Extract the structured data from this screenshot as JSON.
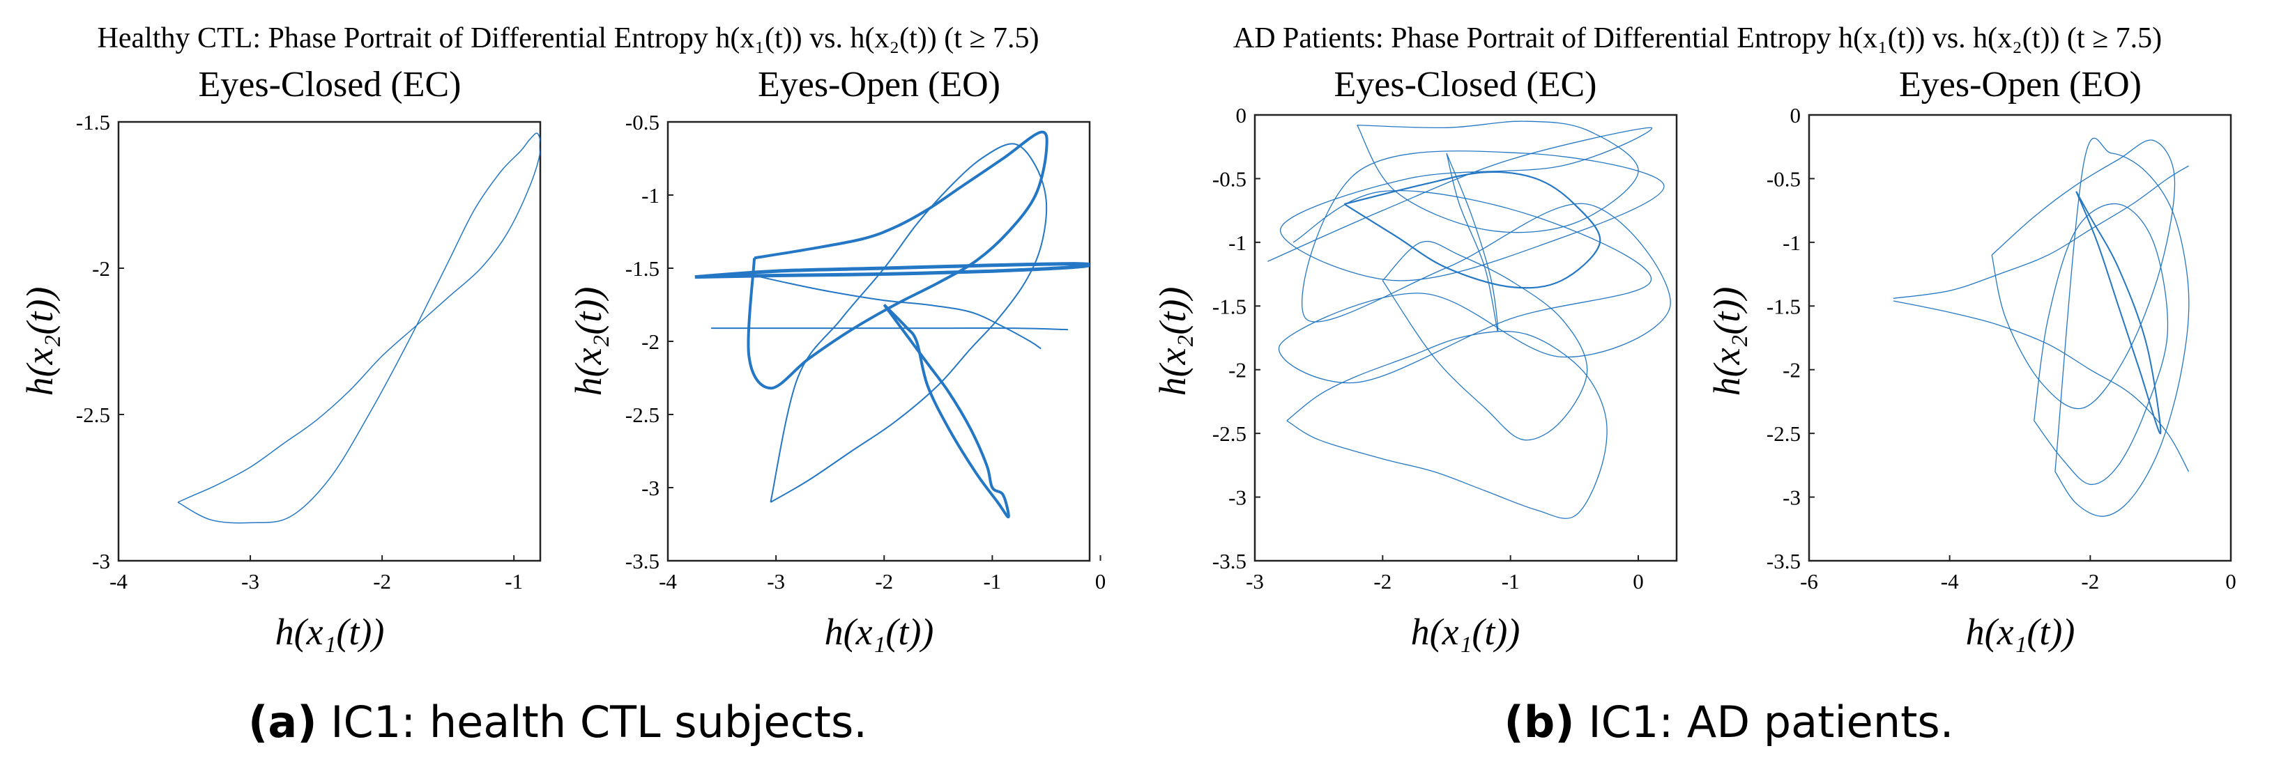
{
  "colors": {
    "line": "#2477c4",
    "axis": "#222222",
    "background": "#ffffff"
  },
  "groups": [
    {
      "panel_title": "Healthy CTL: Phase Portrait of Differential Entropy h(x₁(t)) vs. h(x₂(t)) (t ≥ 7.5)",
      "caption_bold": "(a)",
      "caption_text": " IC1: health CTL subjects."
    },
    {
      "panel_title": "AD Patients: Phase Portrait of Differential Entropy h(x₁(t)) vs. h(x₂(t)) (t ≥ 7.5)",
      "caption_bold": "(b)",
      "caption_text": " IC1: AD patients."
    }
  ],
  "chart_data": [
    {
      "type": "line",
      "group": "Healthy CTL",
      "title": "Eyes-Closed (EC)",
      "xlabel": "h(x₁(t))",
      "ylabel": "h(x₂(t))",
      "xlim": [
        -4,
        -0.8
      ],
      "ylim": [
        -3,
        -1.5
      ],
      "xticks": [
        -4,
        -3,
        -2,
        -1
      ],
      "yticks": [
        -3,
        -2.5,
        -2,
        -1.5
      ],
      "series": [
        {
          "line_width": 1.5,
          "x": [
            -3.55,
            -3.3,
            -3.0,
            -2.7,
            -2.4,
            -2.1,
            -1.8,
            -1.5,
            -1.3,
            -1.1,
            -0.95,
            -0.88,
            -0.82,
            -0.8,
            -0.88,
            -1.05,
            -1.25,
            -1.5,
            -1.75,
            -2.0,
            -2.25,
            -2.5,
            -2.75,
            -3.0,
            -3.25,
            -3.45,
            -3.55
          ],
          "y": [
            -2.8,
            -2.86,
            -2.87,
            -2.85,
            -2.72,
            -2.5,
            -2.25,
            -1.98,
            -1.8,
            -1.67,
            -1.6,
            -1.56,
            -1.54,
            -1.6,
            -1.72,
            -1.88,
            -2.0,
            -2.1,
            -2.2,
            -2.3,
            -2.42,
            -2.52,
            -2.6,
            -2.68,
            -2.74,
            -2.78,
            -2.8
          ]
        }
      ]
    },
    {
      "type": "line",
      "group": "Healthy CTL",
      "title": "Eyes-Open (EO)",
      "xlabel": "h(x₁(t))",
      "ylabel": "h(x₂(t))",
      "xlim": [
        -4,
        -0.1
      ],
      "ylim": [
        -3.5,
        -0.5
      ],
      "xticks": [
        -4,
        -3,
        -2,
        -1,
        0
      ],
      "yticks": [
        -3.5,
        -3,
        -2.5,
        -2,
        -1.5,
        -1,
        -0.5
      ],
      "series": [
        {
          "line_width": 5,
          "x": [
            -3.75,
            -3.0,
            -2.0,
            -1.0,
            -0.2,
            -0.2,
            -1.0,
            -2.0,
            -3.0,
            -3.75
          ],
          "y": [
            -1.56,
            -1.55,
            -1.54,
            -1.52,
            -1.49,
            -1.47,
            -1.48,
            -1.5,
            -1.52,
            -1.56
          ]
        },
        {
          "line_width": 2,
          "x": [
            -3.6,
            -2.5,
            -1.5,
            -0.8,
            -0.3
          ],
          "y": [
            -1.91,
            -1.91,
            -1.91,
            -1.91,
            -1.92
          ]
        },
        {
          "line_width": 4,
          "x": [
            -3.2,
            -2.7,
            -2.2,
            -1.9,
            -1.6,
            -1.3,
            -0.9,
            -0.55,
            -0.5,
            -0.6,
            -0.85,
            -1.15,
            -1.5,
            -1.9,
            -2.3,
            -2.7,
            -3.05,
            -3.25,
            -3.2
          ],
          "y": [
            -1.43,
            -1.37,
            -1.3,
            -1.22,
            -1.1,
            -0.95,
            -0.75,
            -0.57,
            -0.7,
            -1.0,
            -1.25,
            -1.45,
            -1.6,
            -1.75,
            -1.92,
            -2.12,
            -2.32,
            -2.1,
            -1.43
          ]
        },
        {
          "line_width": 2,
          "x": [
            -3.2,
            -2.9,
            -2.5,
            -2.0,
            -1.6,
            -1.2,
            -0.9,
            -0.65,
            -0.55
          ],
          "y": [
            -1.55,
            -1.6,
            -1.66,
            -1.72,
            -1.75,
            -1.8,
            -1.9,
            -2.0,
            -2.05
          ]
        },
        {
          "line_width": 4,
          "x": [
            -2.0,
            -1.8,
            -1.6,
            -1.4,
            -1.2,
            -1.05,
            -1.0,
            -0.9,
            -0.85,
            -0.95,
            -1.15,
            -1.4,
            -1.6,
            -1.7,
            -1.8,
            -2.0
          ],
          "y": [
            -1.75,
            -1.95,
            -2.15,
            -2.35,
            -2.6,
            -2.85,
            -3.0,
            -3.05,
            -3.2,
            -3.1,
            -2.9,
            -2.6,
            -2.3,
            -2.0,
            -1.9,
            -1.75
          ]
        },
        {
          "line_width": 2,
          "x": [
            -3.05,
            -2.7,
            -2.3,
            -1.9,
            -1.5,
            -1.2,
            -0.95,
            -0.7,
            -0.55,
            -0.5,
            -0.6,
            -0.8,
            -1.1,
            -1.4,
            -1.7,
            -2.0,
            -2.4,
            -2.8,
            -3.05
          ],
          "y": [
            -3.1,
            -2.95,
            -2.75,
            -2.55,
            -2.3,
            -2.05,
            -1.85,
            -1.6,
            -1.35,
            -1.05,
            -0.8,
            -0.65,
            -0.75,
            -0.95,
            -1.2,
            -1.5,
            -1.85,
            -2.25,
            -3.1
          ]
        }
      ]
    },
    {
      "type": "line",
      "group": "AD Patients",
      "title": "Eyes-Closed (EC)",
      "xlabel": "h(x₁(t))",
      "ylabel": "h(x₂(t))",
      "xlim": [
        -3,
        0.3
      ],
      "ylim": [
        -3.5,
        0
      ],
      "xticks": [
        -3,
        -2,
        -1,
        0
      ],
      "yticks": [
        -3.5,
        -3,
        -2.5,
        -2,
        -1.5,
        -1,
        -0.5,
        0
      ],
      "series": [
        {
          "line_width": 1.3,
          "x": [
            -2.9,
            -2.0,
            -1.0,
            0.1,
            -0.6,
            -1.8,
            -2.8,
            -1.9,
            -0.7,
            0.2,
            -0.9,
            -2.2,
            -2.6,
            -1.5,
            -0.4,
            0.25,
            -0.6,
            -1.7,
            -2.8,
            -2.2,
            -1.0,
            0.1,
            -0.8,
            -2.0,
            -2.7
          ],
          "y": [
            -1.15,
            -0.75,
            -0.35,
            -0.1,
            -0.4,
            -0.5,
            -0.9,
            -1.3,
            -1.0,
            -0.55,
            -0.3,
            -0.45,
            -1.6,
            -1.2,
            -0.7,
            -1.5,
            -1.9,
            -1.4,
            -1.8,
            -2.1,
            -1.6,
            -1.3,
            -0.8,
            -0.6,
            -1.0
          ]
        },
        {
          "line_width": 1.3,
          "x": [
            -2.75,
            -2.5,
            -2.0,
            -1.6,
            -1.2,
            -0.8,
            -0.5,
            -0.3,
            -0.25,
            -0.4,
            -0.7,
            -1.0,
            -1.4,
            -1.8,
            -2.2,
            -2.5,
            -2.75
          ],
          "y": [
            -2.4,
            -2.55,
            -2.7,
            -2.8,
            -2.95,
            -3.1,
            -3.15,
            -2.8,
            -2.4,
            -2.05,
            -1.8,
            -1.7,
            -1.75,
            -1.9,
            -2.05,
            -2.2,
            -2.4
          ]
        },
        {
          "line_width": 1.3,
          "x": [
            -2.0,
            -1.6,
            -1.2,
            -0.9,
            -0.6,
            -0.4,
            -0.6,
            -1.0,
            -1.4,
            -1.7,
            -2.0
          ],
          "y": [
            -1.3,
            -1.9,
            -2.3,
            -2.55,
            -2.4,
            -2.0,
            -1.6,
            -1.3,
            -1.1,
            -1.0,
            -1.3
          ]
        },
        {
          "line_width": 2.2,
          "x": [
            -2.3,
            -1.7,
            -1.2,
            -0.8,
            -0.5,
            -0.3,
            -0.6,
            -1.0,
            -1.5,
            -1.9,
            -2.3
          ],
          "y": [
            -0.7,
            -0.55,
            -0.45,
            -0.5,
            -0.7,
            -1.0,
            -1.3,
            -1.35,
            -1.2,
            -0.95,
            -0.7
          ]
        },
        {
          "line_width": 1.3,
          "x": [
            -2.2,
            -1.5,
            -0.9,
            -0.4,
            0.0,
            -0.5,
            -1.2,
            -1.9,
            -2.2
          ],
          "y": [
            -0.08,
            -0.1,
            -0.05,
            -0.12,
            -0.45,
            -0.85,
            -0.9,
            -0.6,
            -0.08
          ]
        },
        {
          "line_width": 1.3,
          "x": [
            -1.5,
            -1.3,
            -1.15,
            -1.1,
            -1.2,
            -1.4,
            -1.5
          ],
          "y": [
            -0.3,
            -0.8,
            -1.3,
            -1.7,
            -1.2,
            -0.7,
            -0.3
          ]
        }
      ]
    },
    {
      "type": "line",
      "group": "AD Patients",
      "title": "Eyes-Open (EO)",
      "xlabel": "h(x₁(t))",
      "ylabel": "h(x₂(t))",
      "xlim": [
        -6,
        0
      ],
      "ylim": [
        -3.5,
        0
      ],
      "xticks": [
        -6,
        -4,
        -2,
        0
      ],
      "yticks": [
        -3.5,
        -3,
        -2.5,
        -2,
        -1.5,
        -1,
        -0.5,
        0
      ],
      "series": [
        {
          "line_width": 1.3,
          "x": [
            -4.8,
            -4.0,
            -3.3,
            -2.6,
            -2.0,
            -1.4,
            -0.9,
            -0.6
          ],
          "y": [
            -1.44,
            -1.38,
            -1.25,
            -1.1,
            -0.9,
            -0.7,
            -0.5,
            -0.4
          ]
        },
        {
          "line_width": 1.3,
          "x": [
            -4.8,
            -4.0,
            -3.3,
            -2.6,
            -2.0,
            -1.4,
            -0.9,
            -0.6
          ],
          "y": [
            -1.46,
            -1.55,
            -1.65,
            -1.8,
            -2.0,
            -2.2,
            -2.5,
            -2.8
          ]
        },
        {
          "line_width": 1.3,
          "x": [
            -2.5,
            -2.2,
            -1.8,
            -1.4,
            -1.0,
            -0.7,
            -0.6,
            -0.8,
            -1.2,
            -1.7,
            -2.1,
            -2.5
          ],
          "y": [
            -2.8,
            -3.05,
            -3.15,
            -3.0,
            -2.6,
            -2.0,
            -1.4,
            -0.8,
            -0.45,
            -0.3,
            -0.4,
            -2.8
          ]
        },
        {
          "line_width": 1.3,
          "x": [
            -3.4,
            -2.8,
            -2.2,
            -1.6,
            -1.1,
            -0.8,
            -1.0,
            -1.5,
            -2.1,
            -2.7,
            -3.2,
            -3.4
          ],
          "y": [
            -1.1,
            -0.8,
            -0.55,
            -0.35,
            -0.2,
            -0.5,
            -1.2,
            -1.9,
            -2.3,
            -2.1,
            -1.6,
            -1.1
          ]
        },
        {
          "line_width": 1.3,
          "x": [
            -2.8,
            -2.4,
            -2.0,
            -1.6,
            -1.2,
            -0.9,
            -1.1,
            -1.6,
            -2.2,
            -2.6,
            -2.8
          ],
          "y": [
            -2.4,
            -2.7,
            -2.9,
            -2.75,
            -2.3,
            -1.7,
            -1.0,
            -0.7,
            -0.9,
            -1.6,
            -2.4
          ]
        },
        {
          "line_width": 2.0,
          "x": [
            -2.2,
            -1.9,
            -1.6,
            -1.3,
            -1.0,
            -1.2,
            -1.6,
            -2.0,
            -2.2
          ],
          "y": [
            -0.6,
            -1.0,
            -1.5,
            -2.0,
            -2.5,
            -1.8,
            -1.2,
            -0.8,
            -0.6
          ]
        }
      ]
    }
  ]
}
